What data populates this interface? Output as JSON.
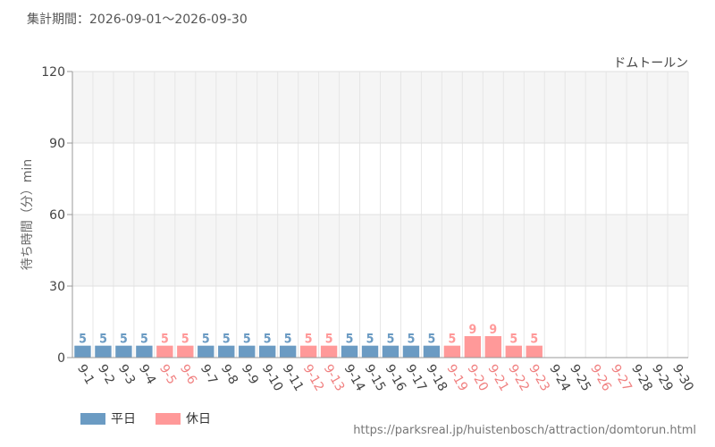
{
  "header": {
    "period_label": "集計期間：2026-09-01～2026-09-30"
  },
  "footer": {
    "url": "https://parksreal.jp/huistenbosch/attraction/domtorun.html"
  },
  "legend": {
    "weekday_label": "平日",
    "holiday_label": "休日"
  },
  "colors": {
    "weekday": "#6b9bc3",
    "holiday": "#ff9999",
    "holiday_text": "#f08080"
  },
  "chart_data": {
    "type": "bar",
    "attraction": "ドムトールン",
    "ylabel": "待ち時間（分）min",
    "ylim": [
      0,
      120
    ],
    "yticks": [
      0,
      30,
      60,
      90,
      120
    ],
    "grid": true,
    "legend_position": "bottom-left",
    "categories": [
      "9-1",
      "9-2",
      "9-3",
      "9-4",
      "9-5",
      "9-6",
      "9-7",
      "9-8",
      "9-9",
      "9-10",
      "9-11",
      "9-12",
      "9-13",
      "9-14",
      "9-15",
      "9-16",
      "9-17",
      "9-18",
      "9-19",
      "9-20",
      "9-21",
      "9-22",
      "9-23",
      "9-24",
      "9-25",
      "9-26",
      "9-27",
      "9-28",
      "9-29",
      "9-30"
    ],
    "day_types": [
      "weekday",
      "weekday",
      "weekday",
      "weekday",
      "holiday",
      "holiday",
      "weekday",
      "weekday",
      "weekday",
      "weekday",
      "weekday",
      "holiday",
      "holiday",
      "weekday",
      "weekday",
      "weekday",
      "weekday",
      "weekday",
      "holiday",
      "holiday",
      "holiday",
      "holiday",
      "holiday",
      "weekday",
      "weekday",
      "holiday",
      "holiday",
      "weekday",
      "weekday",
      "weekday"
    ],
    "values": [
      5,
      5,
      5,
      5,
      5,
      5,
      5,
      5,
      5,
      5,
      5,
      5,
      5,
      5,
      5,
      5,
      5,
      5,
      5,
      9,
      9,
      5,
      5,
      null,
      null,
      null,
      null,
      null,
      null,
      null
    ]
  }
}
